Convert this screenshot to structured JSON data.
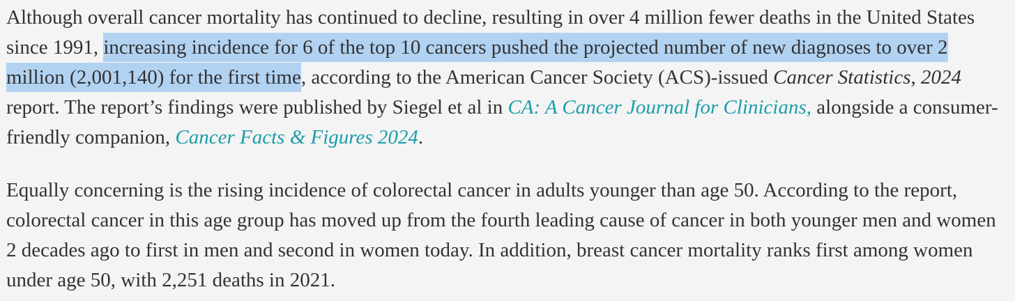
{
  "colors": {
    "background": "#f4f4f4",
    "body_text": "#323232",
    "selection_highlight": "#b2d2f2",
    "link_teal": "#1a9eaa"
  },
  "article": {
    "p1": {
      "s0": "Although overall cancer mortality has continued to decline, resulting in over 4 million fewer deaths in the United States since 1991, ",
      "s1_highlight": "increasing incidence for 6 of the top 10 cancers pushed the projected number of new diagnoses to over 2 million (2,001,140) for the first time",
      "s2": ", according to the American Cancer Society (ACS)-issued ",
      "s3_italic": "Cancer Statistics, 2024",
      "s4": " report. The report’s findings were published by Siegel et al in ",
      "s5_link": "CA: A Cancer Journal for Clinicians,",
      "s6": " alongside a consumer-friendly companion, ",
      "s7_link": "Cancer Facts & Figures 2024",
      "s8": "."
    },
    "p2": {
      "s0": "Equally concerning is the rising incidence of colorectal cancer in adults younger than age 50. According to the report, colorectal cancer in this age group has moved up from the fourth leading cause of cancer in both younger men and women 2 decades ago to first in men and second in women today. In addition, breast cancer mortality ranks first among women under age 50, with 2,251 deaths in 2021."
    }
  }
}
